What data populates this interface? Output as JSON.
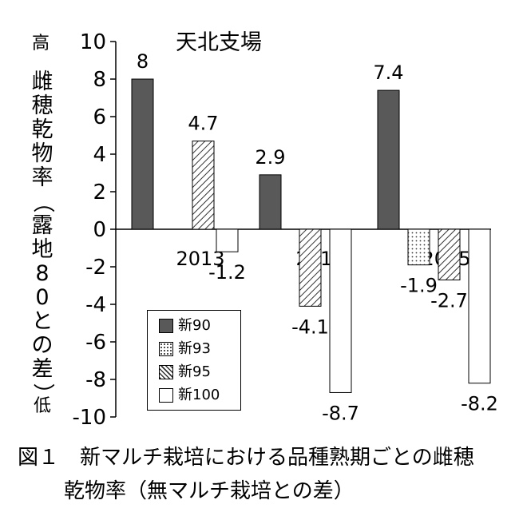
{
  "chart_data": {
    "type": "bar",
    "title": "天北支場",
    "categories": [
      "2013",
      "2014",
      "2015"
    ],
    "series": [
      {
        "name": "新90",
        "values": [
          8,
          2.9,
          7.4
        ],
        "pattern": "solid",
        "color": "#595959"
      },
      {
        "name": "新93",
        "values": [
          null,
          null,
          -1.9
        ],
        "pattern": "dots",
        "color": "#ffffff"
      },
      {
        "name": "新95",
        "values": [
          4.7,
          -4.1,
          -2.7
        ],
        "pattern": "hatch",
        "color": "#ffffff"
      },
      {
        "name": "新100",
        "values": [
          -1.2,
          -8.7,
          -8.2
        ],
        "pattern": "white",
        "color": "#ffffff"
      }
    ],
    "ylim": [
      -10,
      10
    ],
    "yticks": [
      "10",
      "8",
      "6",
      "4",
      "2",
      "0",
      "-2",
      "-4",
      "-6",
      "-8",
      "-10"
    ],
    "ytick_values": [
      10,
      8,
      6,
      4,
      2,
      0,
      -2,
      -4,
      -6,
      -8,
      -10
    ],
    "ylabel": "雌穂乾物率（露地80との差）",
    "y_high_label": "高",
    "y_low_label": "低",
    "grid": false,
    "legend_position": "bottom-left"
  },
  "caption": {
    "line1": "図１　新マルチ栽培における品種熟期ごとの雌穂",
    "line2": "乾物率（無マルチ栽培との差）"
  }
}
